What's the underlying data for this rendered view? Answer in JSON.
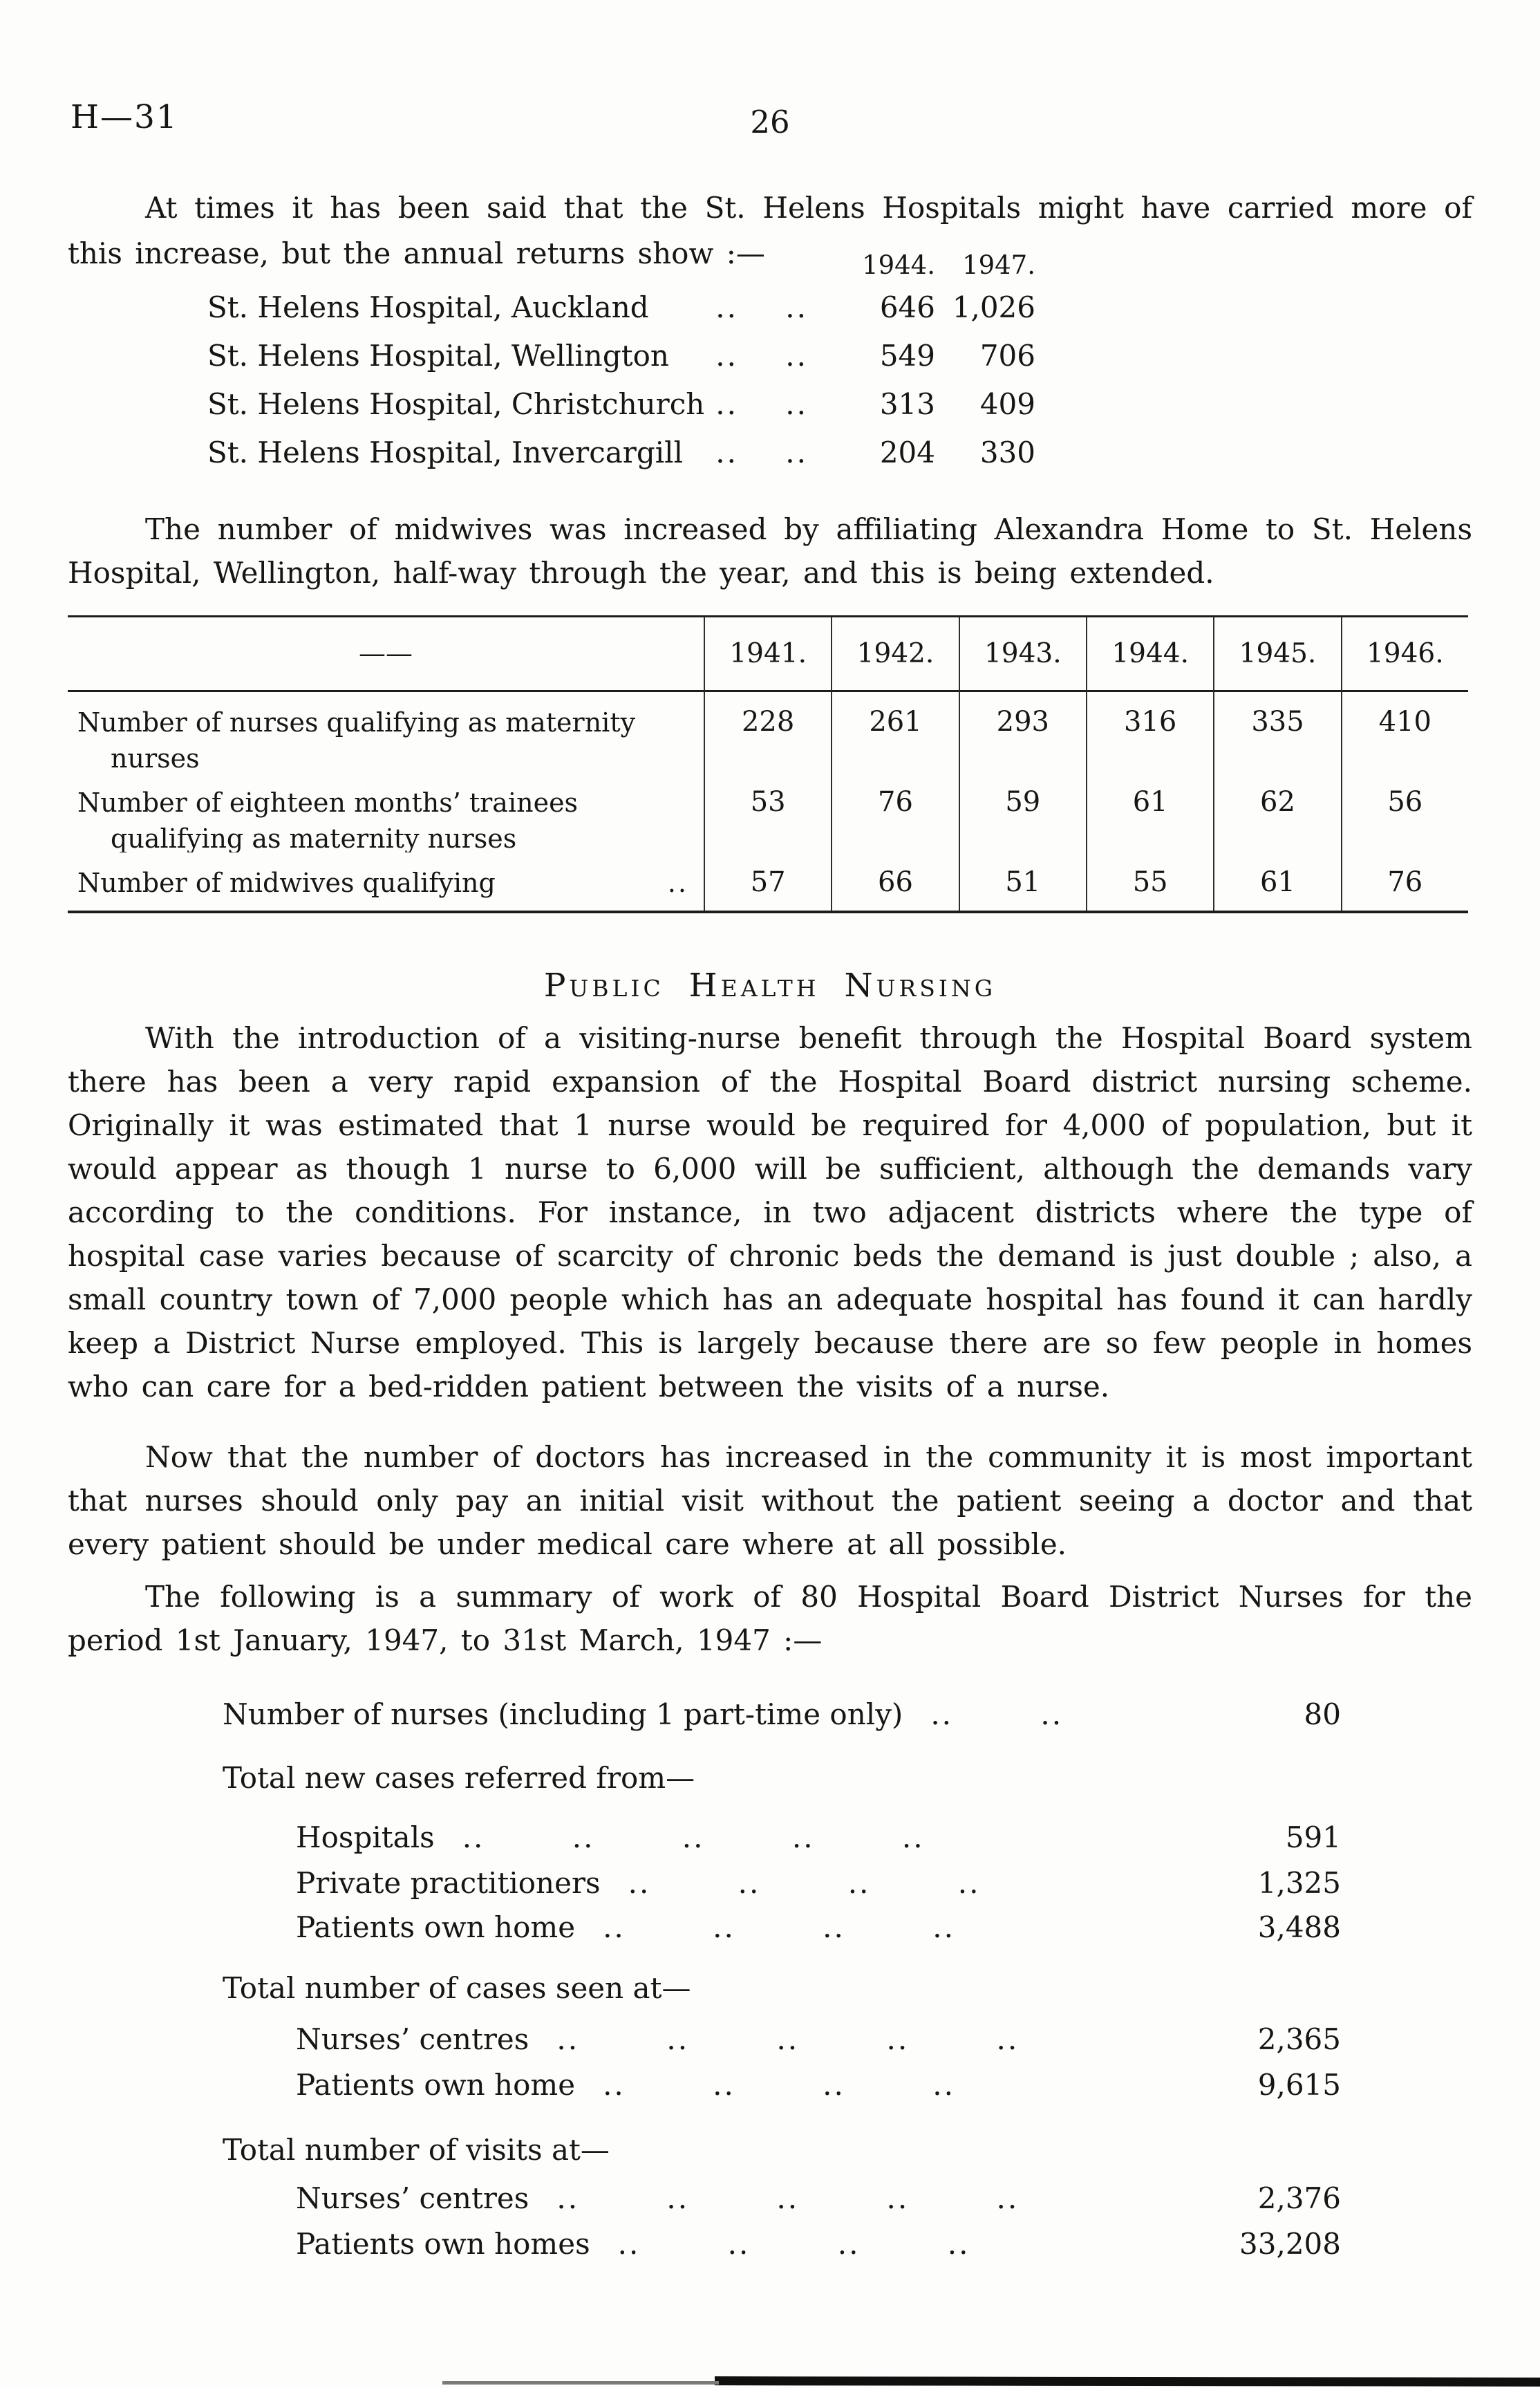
{
  "page": {
    "header_code": "H—31",
    "page_number": "26"
  },
  "para1": "At times it has been said that the St. Helens Hospitals might have carried more of this increase, but the annual returns show :—",
  "hospital_returns": {
    "col_headers": [
      "1944.",
      "1947."
    ],
    "rows": [
      {
        "label": "St. Helens Hospital, Auckland",
        "dots": ".. ..",
        "v1944": "646",
        "v1947": "1,026"
      },
      {
        "label": "St. Helens Hospital, Wellington",
        "dots": ".. ..",
        "v1944": "549",
        "v1947": "706"
      },
      {
        "label": "St. Helens Hospital, Christchurch",
        "dots": ".. ..",
        "v1944": "313",
        "v1947": "409"
      },
      {
        "label": "St. Helens Hospital, Invercargill",
        "dots": ".. ..",
        "v1944": "204",
        "v1947": "330"
      }
    ]
  },
  "para2": "The number of midwives was increased by affiliating Alexandra Home to St. Helens Hospital, Wellington, half-way through the year, and this is being extended.",
  "qualifying_table": {
    "corner_label": "——",
    "years": [
      "1941.",
      "1942.",
      "1943.",
      "1944.",
      "1945.",
      "1946."
    ],
    "rows": [
      {
        "label_lines": [
          "Number of nurses qualifying as maternity",
          "nurses"
        ],
        "trailing_dots": "",
        "values": [
          "228",
          "261",
          "293",
          "316",
          "335",
          "410"
        ]
      },
      {
        "label_lines": [
          "Number of eighteen months’ trainees",
          "qualifying as maternity nurses"
        ],
        "trailing_dots": "",
        "values": [
          "53",
          "76",
          "59",
          "61",
          "62",
          "56"
        ]
      },
      {
        "label_lines": [
          "Number of midwives qualifying"
        ],
        "trailing_dots": "..",
        "values": [
          "57",
          "66",
          "51",
          "55",
          "61",
          "76"
        ]
      }
    ]
  },
  "section_heading": "Public Health Nursing",
  "para3": "With the introduction of a visiting-nurse benefit through the Hospital Board system there has been a very rapid expansion of the Hospital Board district nursing scheme. Originally it was estimated that 1 nurse would be required for 4,000 of population, but it would appear as though 1 nurse to 6,000 will be sufficient, although the demands vary according to the conditions.  For instance, in two adjacent districts where the type of hospital case varies because of scarcity of chronic beds the demand is just double ; also, a small country town of 7,000 people which has an adequate hospital has found it can hardly keep a District Nurse employed.  This is largely because there are so few people in homes who can care for a bed-ridden patient between the visits of a nurse.",
  "para4": "Now that the number of doctors has increased in the community it is most important that nurses should only pay an initial visit without the patient seeing a doctor and that every patient should be under medical care where at all possible.",
  "para5": "The following is a summary of work of 80 Hospital Board District Nurses for the period 1st January, 1947, to 31st March, 1947 :—",
  "summary": {
    "rows": [
      {
        "label": "Number of nurses (including 1 part-time only)",
        "dots": ".. ..",
        "value": "80",
        "level": 1
      },
      {
        "label": "Total new cases referred from—",
        "dots": "",
        "value": "",
        "level": 1
      },
      {
        "label": "Hospitals",
        "dots": ".. .. .. .. ..",
        "value": "591",
        "level": 2
      },
      {
        "label": "Private practitioners",
        "dots": ".. .. .. ..",
        "value": "1,325",
        "level": 2
      },
      {
        "label": "Patients own home",
        "dots": ".. .. .. ..",
        "value": "3,488",
        "level": 2
      },
      {
        "label": "Total number of cases seen at—",
        "dots": "",
        "value": "",
        "level": 1
      },
      {
        "label": "Nurses’ centres",
        "dots": ".. .. .. .. ..",
        "value": "2,365",
        "level": 2
      },
      {
        "label": "Patients own home",
        "dots": ".. .. .. ..",
        "value": "9,615",
        "level": 2
      },
      {
        "label": "Total number of visits at—",
        "dots": "",
        "value": "",
        "level": 1
      },
      {
        "label": "Nurses’ centres",
        "dots": ".. .. .. .. ..",
        "value": "2,376",
        "level": 2
      },
      {
        "label": "Patients own homes",
        "dots": ".. .. .. ..",
        "value": "33,208",
        "level": 2
      }
    ]
  }
}
